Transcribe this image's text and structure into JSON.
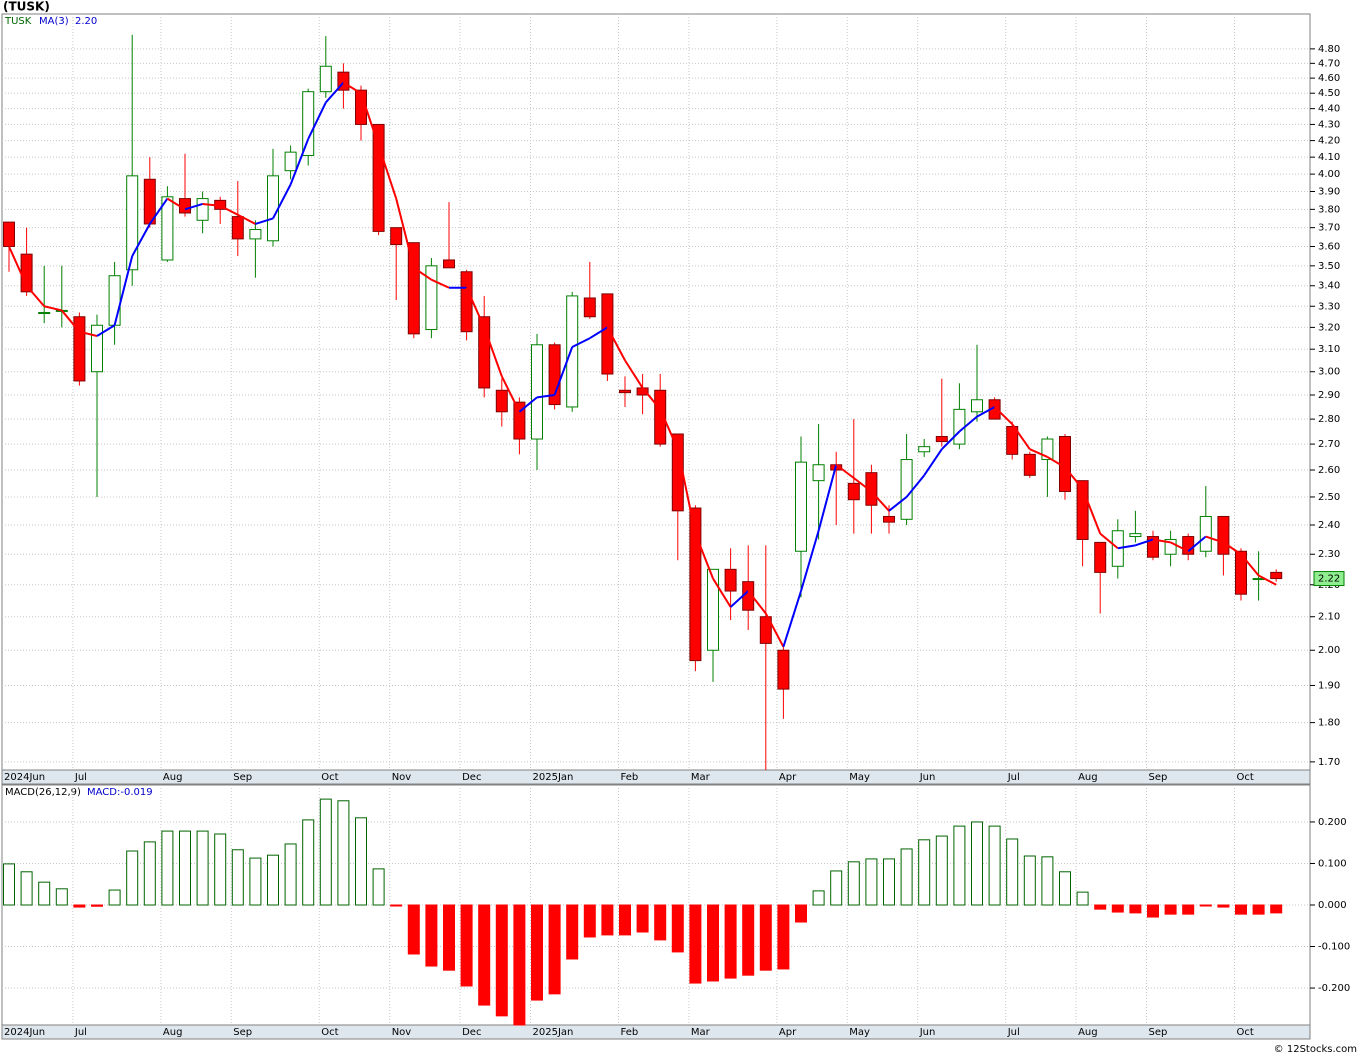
{
  "chart_data": [
    {
      "type": "candlestick",
      "title": "(TUSK)",
      "symbol": "TUSK",
      "categories": [
        "2024Jun",
        null,
        null,
        null,
        "Jul",
        null,
        null,
        null,
        null,
        "Aug",
        null,
        null,
        null,
        "Sep",
        null,
        null,
        null,
        null,
        "Oct",
        null,
        null,
        null,
        "Nov",
        null,
        null,
        null,
        "Dec",
        null,
        null,
        null,
        "2025Jan",
        null,
        null,
        null,
        null,
        "Feb",
        null,
        null,
        null,
        "Mar",
        null,
        null,
        null,
        null,
        "Apr",
        null,
        null,
        null,
        "May",
        null,
        null,
        null,
        "Jun",
        null,
        null,
        null,
        null,
        "Jul",
        null,
        null,
        null,
        "Aug",
        null,
        null,
        null,
        "Sep",
        null,
        null,
        null,
        null,
        "Oct",
        null,
        null
      ],
      "open": [
        3.73,
        3.56,
        3.27,
        3.28,
        3.25,
        3.0,
        3.21,
        3.48,
        3.97,
        3.53,
        3.86,
        3.74,
        3.85,
        3.76,
        3.64,
        3.63,
        4.02,
        4.11,
        4.51,
        4.64,
        4.52,
        4.3,
        3.7,
        3.62,
        3.19,
        3.53,
        3.47,
        3.25,
        2.92,
        2.87,
        2.72,
        3.12,
        2.85,
        3.34,
        3.36,
        2.92,
        2.93,
        2.92,
        2.74,
        2.46,
        2.0,
        2.25,
        2.21,
        2.1,
        2.0,
        2.31,
        2.56,
        2.62,
        2.55,
        2.59,
        2.43,
        2.42,
        2.67,
        2.73,
        2.7,
        2.83,
        2.88,
        2.77,
        2.66,
        2.64,
        2.73,
        2.56,
        2.34,
        2.26,
        2.36,
        2.36,
        2.3,
        2.36,
        2.31,
        2.43,
        2.31,
        2.22,
        2.24
      ],
      "high": [
        3.73,
        3.7,
        3.5,
        3.5,
        3.27,
        3.26,
        3.52,
        4.9,
        4.1,
        3.93,
        4.12,
        3.9,
        3.87,
        3.96,
        3.74,
        4.15,
        4.17,
        4.53,
        4.89,
        4.7,
        4.55,
        4.3,
        3.7,
        3.62,
        3.54,
        3.84,
        3.48,
        3.35,
        2.97,
        2.89,
        3.17,
        3.13,
        3.37,
        3.52,
        3.36,
        2.98,
        2.99,
        2.99,
        2.74,
        2.47,
        2.25,
        2.32,
        2.33,
        2.33,
        2.01,
        2.73,
        2.78,
        2.67,
        2.8,
        2.62,
        2.47,
        2.74,
        2.72,
        2.97,
        2.95,
        3.12,
        2.89,
        2.79,
        2.67,
        2.73,
        2.74,
        2.56,
        2.34,
        2.42,
        2.45,
        2.38,
        2.38,
        2.37,
        2.54,
        2.43,
        2.32,
        2.31,
        2.25
      ],
      "low": [
        3.47,
        3.35,
        3.22,
        3.2,
        2.94,
        2.5,
        3.12,
        3.4,
        3.7,
        3.52,
        3.76,
        3.67,
        3.72,
        3.55,
        3.44,
        3.6,
        3.97,
        4.05,
        4.47,
        4.4,
        4.2,
        3.66,
        3.33,
        3.15,
        3.15,
        3.49,
        3.14,
        2.89,
        2.77,
        2.66,
        2.6,
        2.84,
        2.83,
        3.24,
        2.96,
        2.85,
        2.82,
        2.69,
        2.28,
        1.94,
        1.91,
        2.09,
        2.06,
        1.68,
        1.81,
        2.16,
        2.35,
        2.4,
        2.37,
        2.37,
        2.37,
        2.4,
        2.65,
        2.69,
        2.68,
        2.79,
        2.8,
        2.64,
        2.57,
        2.5,
        2.49,
        2.26,
        2.11,
        2.22,
        2.34,
        2.28,
        2.26,
        2.28,
        2.29,
        2.23,
        2.15,
        2.15,
        2.21
      ],
      "close": [
        3.6,
        3.37,
        3.27,
        3.28,
        2.96,
        3.21,
        3.45,
        3.99,
        3.72,
        3.87,
        3.78,
        3.86,
        3.8,
        3.64,
        3.69,
        3.99,
        4.13,
        4.51,
        4.68,
        4.52,
        4.3,
        3.68,
        3.61,
        3.17,
        3.5,
        3.49,
        3.18,
        2.93,
        2.83,
        2.72,
        3.12,
        2.86,
        3.35,
        3.25,
        2.99,
        2.91,
        2.9,
        2.7,
        2.45,
        1.97,
        2.25,
        2.18,
        2.12,
        2.02,
        1.89,
        2.63,
        2.62,
        2.6,
        2.49,
        2.47,
        2.41,
        2.64,
        2.69,
        2.71,
        2.84,
        2.88,
        2.8,
        2.66,
        2.58,
        2.72,
        2.52,
        2.35,
        2.24,
        2.38,
        2.37,
        2.29,
        2.35,
        2.3,
        2.43,
        2.3,
        2.17,
        2.22,
        2.22
      ],
      "up_color": "#008000",
      "down_color": "#ff0000",
      "series": [
        {
          "name": "MA(3)",
          "value_label": "2.20",
          "up_color": "#0000ff",
          "down_color": "#ff0000",
          "values": [
            3.6,
            3.4,
            3.3,
            3.28,
            3.18,
            3.16,
            3.21,
            3.55,
            3.72,
            3.86,
            3.8,
            3.83,
            3.82,
            3.77,
            3.72,
            3.75,
            3.94,
            4.21,
            4.44,
            4.57,
            4.5,
            4.17,
            3.86,
            3.49,
            3.43,
            3.39,
            3.39,
            3.2,
            2.98,
            2.83,
            2.89,
            2.9,
            3.11,
            3.15,
            3.2,
            3.05,
            2.93,
            2.84,
            2.68,
            2.37,
            2.22,
            2.13,
            2.18,
            2.11,
            2.01,
            2.18,
            2.38,
            2.62,
            2.57,
            2.52,
            2.45,
            2.5,
            2.58,
            2.68,
            2.75,
            2.81,
            2.85,
            2.78,
            2.68,
            2.65,
            2.61,
            2.53,
            2.37,
            2.32,
            2.33,
            2.35,
            2.34,
            2.31,
            2.36,
            2.34,
            2.3,
            2.23,
            2.2
          ]
        }
      ],
      "last_label": "2.22",
      "ylim": [
        1.68,
        5.05
      ],
      "log_scale": true,
      "grid": true,
      "yticks": [
        {
          "value": 1.7,
          "label": "1.70"
        },
        {
          "value": 1.8,
          "label": "1.80"
        },
        {
          "value": 1.9,
          "label": "1.90"
        },
        {
          "value": 2.0,
          "label": "2.00"
        },
        {
          "value": 2.1,
          "label": "2.10"
        },
        {
          "value": 2.2,
          "label": "2.20"
        },
        {
          "value": 2.3,
          "label": "2.30"
        },
        {
          "value": 2.4,
          "label": "2.40"
        },
        {
          "value": 2.5,
          "label": "2.50"
        },
        {
          "value": 2.6,
          "label": "2.60"
        },
        {
          "value": 2.7,
          "label": "2.70"
        },
        {
          "value": 2.8,
          "label": "2.80"
        },
        {
          "value": 2.9,
          "label": "2.90"
        },
        {
          "value": 3.0,
          "label": "3.00"
        },
        {
          "value": 3.1,
          "label": "3.10"
        },
        {
          "value": 3.2,
          "label": "3.20"
        },
        {
          "value": 3.3,
          "label": "3.30"
        },
        {
          "value": 3.4,
          "label": "3.40"
        },
        {
          "value": 3.5,
          "label": "3.50"
        },
        {
          "value": 3.6,
          "label": "3.60"
        },
        {
          "value": 3.7,
          "label": "3.70"
        },
        {
          "value": 3.8,
          "label": "3.80"
        },
        {
          "value": 3.9,
          "label": "3.90"
        },
        {
          "value": 4.0,
          "label": "4.00"
        },
        {
          "value": 4.1,
          "label": "4.10"
        },
        {
          "value": 4.2,
          "label": "4.20"
        },
        {
          "value": 4.3,
          "label": "4.30"
        },
        {
          "value": 4.4,
          "label": "4.40"
        },
        {
          "value": 4.5,
          "label": "4.50"
        },
        {
          "value": 4.6,
          "label": "4.60"
        },
        {
          "value": 4.7,
          "label": "4.70"
        },
        {
          "value": 4.8,
          "label": "4.80"
        }
      ]
    },
    {
      "type": "bar",
      "title": "MACD(26,12,9)",
      "value_label": "MACD:-0.019",
      "categories": [
        "2024Jun",
        null,
        null,
        null,
        "Jul",
        null,
        null,
        null,
        null,
        "Aug",
        null,
        null,
        null,
        "Sep",
        null,
        null,
        null,
        null,
        "Oct",
        null,
        null,
        null,
        "Nov",
        null,
        null,
        null,
        "Dec",
        null,
        null,
        null,
        "2025Jan",
        null,
        null,
        null,
        null,
        "Feb",
        null,
        null,
        null,
        "Mar",
        null,
        null,
        null,
        null,
        "Apr",
        null,
        null,
        null,
        "May",
        null,
        null,
        null,
        "Jun",
        null,
        null,
        null,
        null,
        "Jul",
        null,
        null,
        null,
        "Aug",
        null,
        null,
        null,
        "Sep",
        null,
        null,
        null,
        null,
        "Oct",
        null,
        null
      ],
      "values": [
        0.099,
        0.08,
        0.055,
        0.039,
        -0.005,
        -0.003,
        0.036,
        0.13,
        0.152,
        0.178,
        0.178,
        0.178,
        0.171,
        0.133,
        0.113,
        0.12,
        0.147,
        0.205,
        0.255,
        0.251,
        0.21,
        0.087,
        -0.002,
        -0.118,
        -0.147,
        -0.157,
        -0.195,
        -0.241,
        -0.267,
        -0.289,
        -0.229,
        -0.214,
        -0.13,
        -0.077,
        -0.072,
        -0.072,
        -0.065,
        -0.084,
        -0.113,
        -0.188,
        -0.183,
        -0.176,
        -0.169,
        -0.157,
        -0.154,
        -0.041,
        0.034,
        0.082,
        0.104,
        0.111,
        0.111,
        0.135,
        0.157,
        0.166,
        0.19,
        0.2,
        0.19,
        0.159,
        0.118,
        0.116,
        0.08,
        0.031,
        -0.01,
        -0.017,
        -0.019,
        -0.029,
        -0.022,
        -0.022,
        -0.002,
        -0.005,
        -0.022,
        -0.022,
        -0.019
      ],
      "up_color": "#006400",
      "down_color": "#ff0000",
      "ylim": [
        -0.289,
        0.289
      ],
      "grid": true,
      "yticks": [
        {
          "value": -0.2,
          "label": "-0.200"
        },
        {
          "value": -0.1,
          "label": "-0.100"
        },
        {
          "value": 0,
          "label": "0.000"
        },
        {
          "value": 0.1,
          "label": "0.100"
        },
        {
          "value": 0.2,
          "label": "0.200"
        }
      ]
    }
  ],
  "footer": "© 12Stocks.com"
}
